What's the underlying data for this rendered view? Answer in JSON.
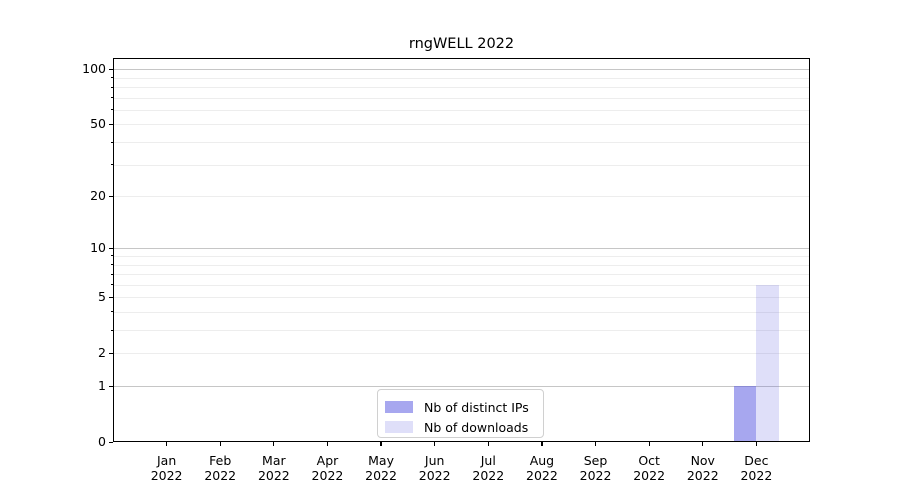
{
  "chart_data": {
    "type": "bar",
    "title": "rngWELL 2022",
    "categories": [
      "Jan",
      "Feb",
      "Mar",
      "Apr",
      "May",
      "Jun",
      "Jul",
      "Aug",
      "Sep",
      "Oct",
      "Nov",
      "Dec"
    ],
    "year_label": "2022",
    "series": [
      {
        "name": "Nb of distinct IPs",
        "color": "rgba(80,80,224,0.5)",
        "values": [
          0,
          0,
          0,
          0,
          0,
          0,
          0,
          0,
          0,
          0,
          0,
          1
        ]
      },
      {
        "name": "Nb of downloads",
        "color": "rgba(80,80,224,0.18)",
        "values": [
          0,
          0,
          0,
          0,
          0,
          0,
          0,
          0,
          0,
          0,
          0,
          6
        ]
      }
    ],
    "yscale": "log1p",
    "ylim": [
      0,
      115
    ],
    "yticks": [
      0,
      1,
      2,
      5,
      10,
      20,
      50,
      100
    ],
    "grid": {
      "major": [
        1,
        10,
        100
      ],
      "minor": [
        2,
        3,
        4,
        5,
        6,
        7,
        8,
        9,
        20,
        30,
        40,
        50,
        60,
        70,
        80,
        90
      ]
    },
    "legend_position": "lower center",
    "grid_on": true,
    "colors": {
      "grid_major": "#c6c6c6",
      "grid_minor": "#ededed",
      "spine": "#000000",
      "text": "#000000"
    }
  }
}
